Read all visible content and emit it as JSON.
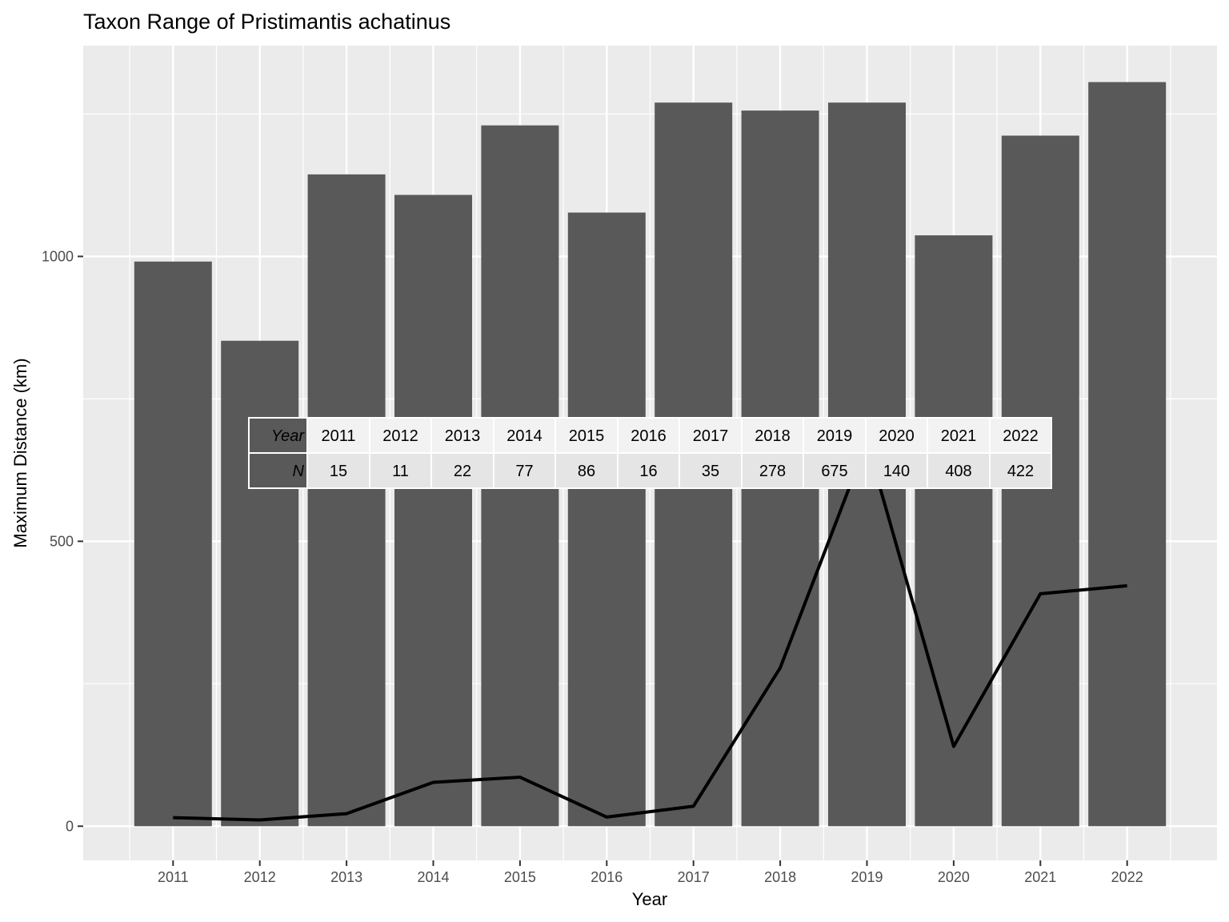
{
  "chart_data": {
    "type": "bar",
    "title": "Taxon Range of Pristimantis achatinus",
    "xlabel": "Year",
    "ylabel": "Maximum Distance (km)",
    "categories": [
      "2011",
      "2012",
      "2013",
      "2014",
      "2015",
      "2016",
      "2017",
      "2018",
      "2019",
      "2020",
      "2021",
      "2022"
    ],
    "series": [
      {
        "type": "bar",
        "values": [
          991,
          852,
          1144,
          1108,
          1230,
          1077,
          1270,
          1256,
          1270,
          1037,
          1212,
          1306
        ]
      },
      {
        "type": "line",
        "values": [
          15,
          11,
          22,
          77,
          86,
          16,
          35,
          278,
          675,
          140,
          408,
          422
        ]
      }
    ],
    "ylim": [
      -60,
      1370
    ],
    "yticks": [
      0,
      500,
      1000
    ],
    "grid": true,
    "bar_color": "#595959",
    "line_color": "#000000",
    "panel_color": "#ebebeb",
    "table": {
      "row_labels": [
        "Year",
        "N"
      ],
      "years": [
        "2011",
        "2012",
        "2013",
        "2014",
        "2015",
        "2016",
        "2017",
        "2018",
        "2019",
        "2020",
        "2021",
        "2022"
      ],
      "n": [
        "15",
        "11",
        "22",
        "77",
        "86",
        "16",
        "35",
        "278",
        "675",
        "140",
        "408",
        "422"
      ]
    }
  }
}
